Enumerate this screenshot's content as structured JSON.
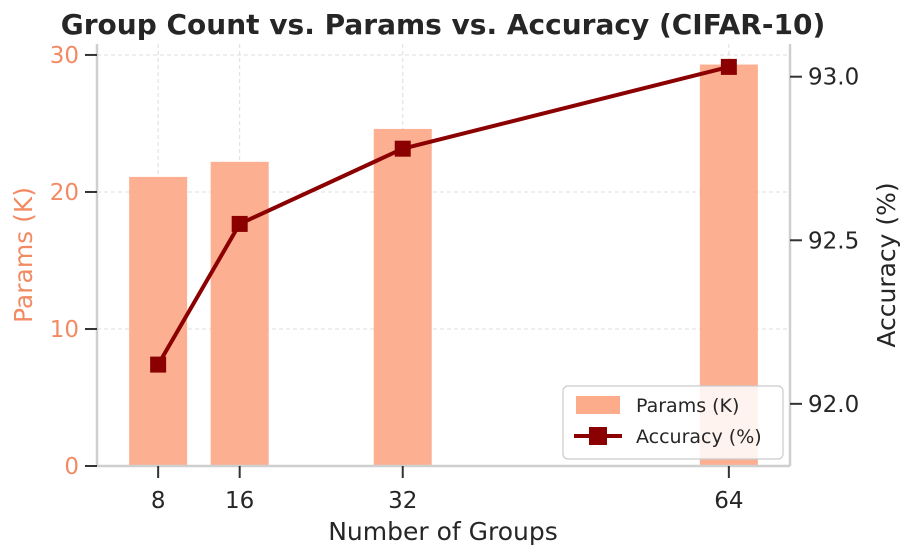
{
  "chart_data": {
    "type": "bar+line",
    "title": "Group Count vs. Params vs. Accuracy (CIFAR-10)",
    "xlabel": "Number of Groups",
    "ylabel_left": "Params (K)",
    "ylabel_right": "Accuracy (%)",
    "x": [
      8,
      16,
      32,
      64
    ],
    "x_tick_labels": [
      "8",
      "16",
      "32",
      "64"
    ],
    "xlim": [
      2,
      70
    ],
    "ylim_left": [
      0,
      30.8
    ],
    "ylim_right": [
      91.81,
      93.1
    ],
    "y_ticks_left": [
      0,
      10,
      20,
      30
    ],
    "y_ticks_right": [
      92.0,
      92.5,
      93.0
    ],
    "y_tick_labels_left": [
      "0",
      "10",
      "20",
      "30"
    ],
    "y_tick_labels_right": [
      "92.0",
      "92.5",
      "93.0"
    ],
    "series": [
      {
        "name": "Params (K)",
        "kind": "bar",
        "axis": "left",
        "color": "#fcab8b",
        "values": [
          21.1,
          22.2,
          24.6,
          29.3
        ]
      },
      {
        "name": "Accuracy (%)",
        "kind": "line",
        "axis": "right",
        "color": "#8b0000",
        "marker": "square",
        "values": [
          92.12,
          92.55,
          92.78,
          93.03
        ]
      }
    ],
    "legend_position": "lower-right",
    "grid": true,
    "colors": {
      "left_axis": "#f28b63",
      "text": "#262626",
      "grid": "#dddddd",
      "spine": "#cfcfcf"
    }
  }
}
